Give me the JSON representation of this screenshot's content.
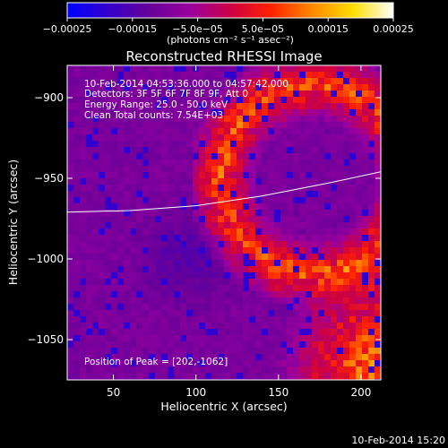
{
  "chart_data": {
    "type": "heatmap",
    "title": "Reconstructed RHESSI Image",
    "xlabel": "Heliocentric X (arcsec)",
    "ylabel": "Heliocentric Y (arcsec)",
    "xlim": [
      22,
      212
    ],
    "ylim": [
      -1075,
      -880
    ],
    "x_ticks": [
      50,
      100,
      150,
      200
    ],
    "y_ticks": [
      -900,
      -950,
      -1000,
      -1050
    ],
    "x_tick_labels": [
      "50",
      "100",
      "150",
      "200"
    ],
    "y_tick_labels": [
      "−900",
      "−950",
      "−1000",
      "−1050"
    ],
    "info_lines": [
      "10-Feb-2014 04:53:36.000 to 04:57:42.000",
      "Detectors: 3F 5F 6F 7F 8F 9F, Att 0",
      "Energy Range: 25.0 - 50.0 keV",
      "Clean     Total counts: 7.54E+03"
    ],
    "peak_label": "Position of Peak = [202,-1062]",
    "peak_position": [
      202,
      -1062
    ],
    "limb_curve": [
      [
        22,
        -971
      ],
      [
        60,
        -970
      ],
      [
        100,
        -967
      ],
      [
        140,
        -961
      ],
      [
        180,
        -953
      ],
      [
        212,
        -946
      ]
    ],
    "colorbar": {
      "range": [
        -0.00025,
        0.00025
      ],
      "ticks": [
        -0.00025,
        -0.00015,
        -5e-05,
        5e-05,
        0.00015,
        0.00025
      ],
      "tick_labels": [
        "−0.00025",
        "−0.00015",
        "−5.0e−05",
        "5.0e−05",
        "0.00015",
        "0.00025"
      ],
      "unit_label": "(photons cm⁻² s⁻¹ asec⁻²)",
      "colors": [
        "#0000ff",
        "#3300cc",
        "#660099",
        "#99009f",
        "#cc0044",
        "#ff2200",
        "#ff8800",
        "#ffdd00",
        "#ffffff"
      ]
    }
  },
  "footer": {
    "timestamp": "10-Feb-2014 15:20"
  }
}
